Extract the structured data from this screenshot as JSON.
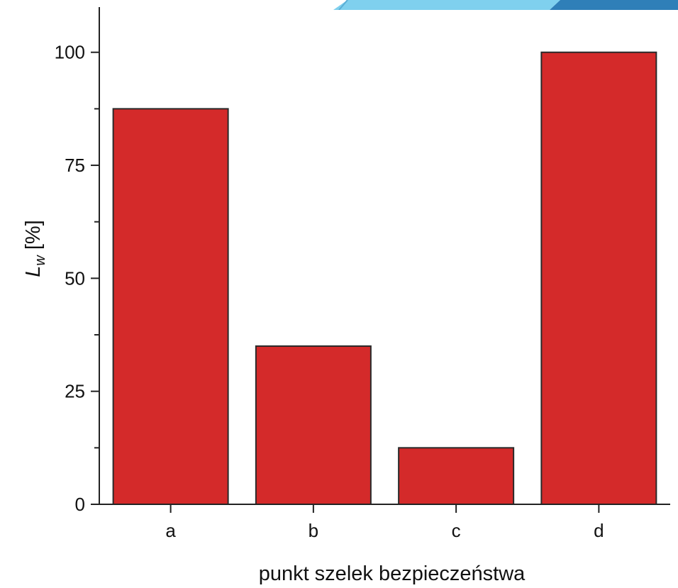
{
  "colors": {
    "bar_fill": "#d42a2a",
    "bar_stroke": "#2a2a2a",
    "axis": "#222222",
    "banner_light": "#7fd0ee",
    "banner_dark": "#2f7fb8"
  },
  "chart_data": {
    "type": "bar",
    "categories": [
      "a",
      "b",
      "c",
      "d"
    ],
    "values": [
      87.5,
      35,
      12.5,
      100
    ],
    "title": "",
    "xlabel": "punkt szelek bezpieczeństwa",
    "ylabel": {
      "main": "L",
      "subscript": "w",
      "unit": " [%]"
    },
    "ylim": [
      0,
      110
    ],
    "yticks": [
      0,
      25,
      50,
      75,
      100
    ],
    "grid": false,
    "legend": "none"
  }
}
